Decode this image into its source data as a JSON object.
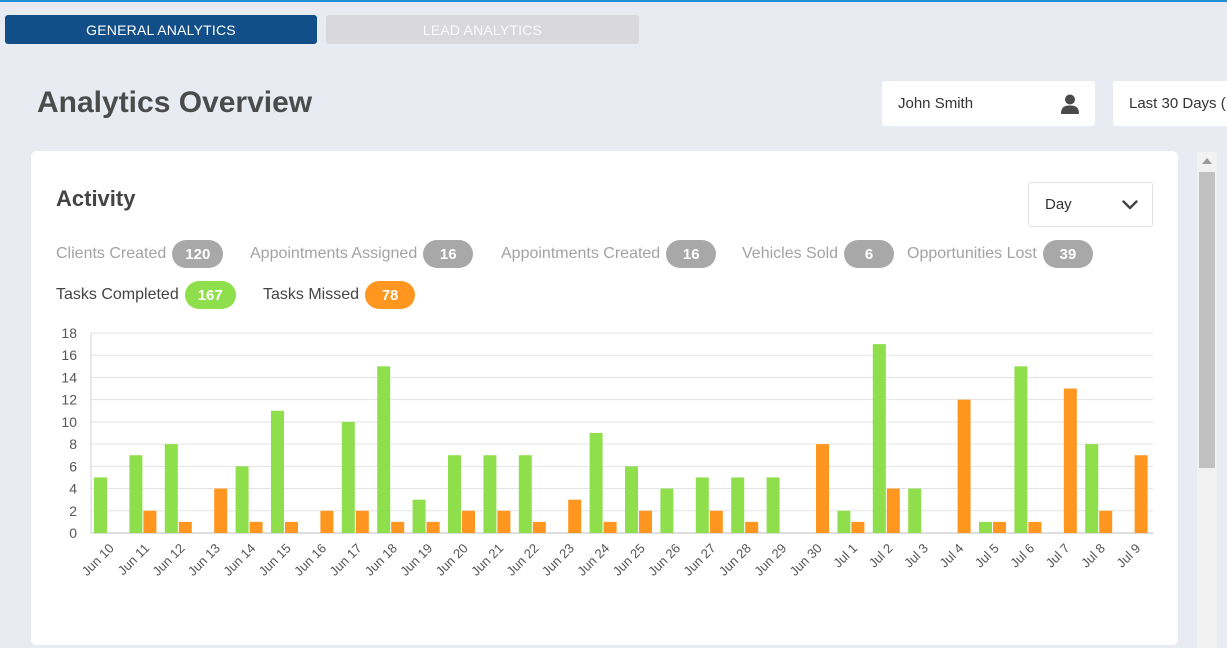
{
  "tabs": [
    {
      "label": "GENERAL ANALYTICS",
      "active": true
    },
    {
      "label": "LEAD ANALYTICS",
      "active": false
    }
  ],
  "page": {
    "title": "Analytics Overview"
  },
  "filters": {
    "user": "John Smith",
    "user_icon": "user-icon",
    "range": "Last 30 Days ("
  },
  "activity": {
    "title": "Activity",
    "interval": "Day",
    "metrics": [
      {
        "label": "Clients Created",
        "count": "120",
        "active": false
      },
      {
        "label": "Appointments Assigned",
        "count": "16",
        "active": false
      },
      {
        "label": "Appointments Created",
        "count": "16",
        "active": false
      },
      {
        "label": "Vehicles Sold",
        "count": "6",
        "active": false
      },
      {
        "label": "Opportunities Lost",
        "count": "39",
        "active": false
      },
      {
        "label": "Tasks Completed",
        "count": "167",
        "active": true
      },
      {
        "label": "Tasks Missed",
        "count": "78",
        "active": true
      }
    ]
  },
  "colors": {
    "tasks_completed": "#8fde4c",
    "tasks_missed": "#ff961f",
    "accent": "#124e88"
  },
  "chart_data": {
    "type": "bar",
    "categories": [
      "Jun 10",
      "Jun 11",
      "Jun 12",
      "Jun 13",
      "Jun 14",
      "Jun 15",
      "Jun 16",
      "Jun 17",
      "Jun 18",
      "Jun 19",
      "Jun 20",
      "Jun 21",
      "Jun 22",
      "Jun 23",
      "Jun 24",
      "Jun 25",
      "Jun 26",
      "Jun 27",
      "Jun 28",
      "Jun 29",
      "Jun 30",
      "Jul 1",
      "Jul 2",
      "Jul 3",
      "Jul 4",
      "Jul 5",
      "Jul 6",
      "Jul 7",
      "Jul 8",
      "Jul 9"
    ],
    "series": [
      {
        "name": "Tasks Completed",
        "color": "#8fde4c",
        "values": [
          5,
          7,
          8,
          0,
          6,
          11,
          0,
          10,
          15,
          3,
          7,
          7,
          7,
          0,
          9,
          6,
          4,
          5,
          5,
          5,
          0,
          2,
          17,
          4,
          0,
          1,
          15,
          0,
          8,
          0
        ]
      },
      {
        "name": "Tasks Missed",
        "color": "#ff961f",
        "values": [
          0,
          2,
          1,
          4,
          1,
          1,
          2,
          2,
          1,
          1,
          2,
          2,
          1,
          3,
          1,
          2,
          0,
          2,
          1,
          0,
          8,
          1,
          4,
          0,
          12,
          1,
          1,
          13,
          2,
          7
        ]
      }
    ],
    "yticks": [
      0,
      2,
      4,
      6,
      8,
      10,
      12,
      14,
      16,
      18
    ],
    "ylim": [
      0,
      18
    ],
    "grid": true,
    "legend": "none"
  }
}
